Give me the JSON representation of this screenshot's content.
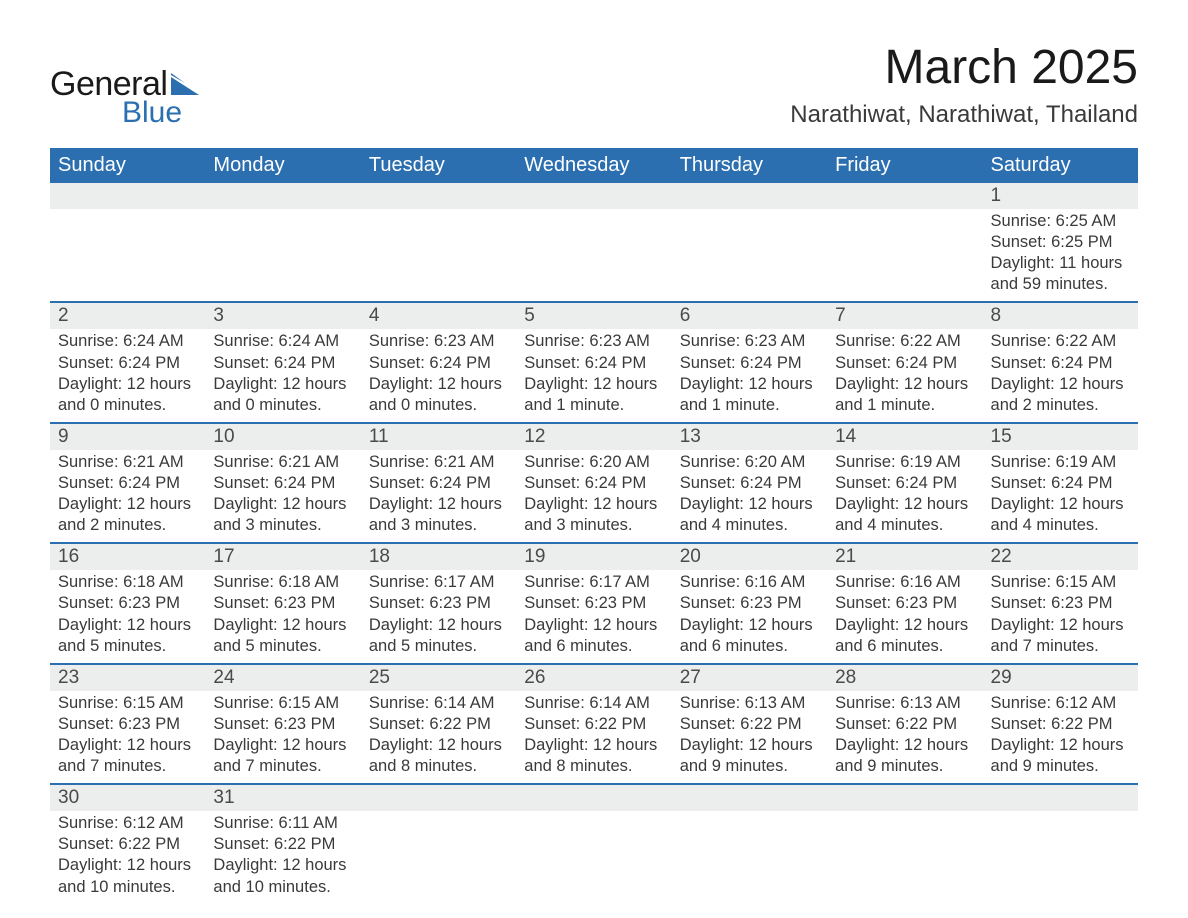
{
  "logo": {
    "text1": "General",
    "text2": "Blue",
    "flag_color": "#2b6fb0"
  },
  "title": "March 2025",
  "location": "Narathiwat, Narathiwat, Thailand",
  "colors": {
    "header_bg": "#2b6fb0",
    "header_fg": "#ffffff",
    "daynum_bg": "#eceded",
    "row_divider": "#2b6fb0",
    "text": "#3a3a3a"
  },
  "weekdays": [
    "Sunday",
    "Monday",
    "Tuesday",
    "Wednesday",
    "Thursday",
    "Friday",
    "Saturday"
  ],
  "weeks": [
    [
      null,
      null,
      null,
      null,
      null,
      null,
      {
        "n": "1",
        "sr": "6:25 AM",
        "ss": "6:25 PM",
        "dl": "11 hours and 59 minutes."
      }
    ],
    [
      {
        "n": "2",
        "sr": "6:24 AM",
        "ss": "6:24 PM",
        "dl": "12 hours and 0 minutes."
      },
      {
        "n": "3",
        "sr": "6:24 AM",
        "ss": "6:24 PM",
        "dl": "12 hours and 0 minutes."
      },
      {
        "n": "4",
        "sr": "6:23 AM",
        "ss": "6:24 PM",
        "dl": "12 hours and 0 minutes."
      },
      {
        "n": "5",
        "sr": "6:23 AM",
        "ss": "6:24 PM",
        "dl": "12 hours and 1 minute."
      },
      {
        "n": "6",
        "sr": "6:23 AM",
        "ss": "6:24 PM",
        "dl": "12 hours and 1 minute."
      },
      {
        "n": "7",
        "sr": "6:22 AM",
        "ss": "6:24 PM",
        "dl": "12 hours and 1 minute."
      },
      {
        "n": "8",
        "sr": "6:22 AM",
        "ss": "6:24 PM",
        "dl": "12 hours and 2 minutes."
      }
    ],
    [
      {
        "n": "9",
        "sr": "6:21 AM",
        "ss": "6:24 PM",
        "dl": "12 hours and 2 minutes."
      },
      {
        "n": "10",
        "sr": "6:21 AM",
        "ss": "6:24 PM",
        "dl": "12 hours and 3 minutes."
      },
      {
        "n": "11",
        "sr": "6:21 AM",
        "ss": "6:24 PM",
        "dl": "12 hours and 3 minutes."
      },
      {
        "n": "12",
        "sr": "6:20 AM",
        "ss": "6:24 PM",
        "dl": "12 hours and 3 minutes."
      },
      {
        "n": "13",
        "sr": "6:20 AM",
        "ss": "6:24 PM",
        "dl": "12 hours and 4 minutes."
      },
      {
        "n": "14",
        "sr": "6:19 AM",
        "ss": "6:24 PM",
        "dl": "12 hours and 4 minutes."
      },
      {
        "n": "15",
        "sr": "6:19 AM",
        "ss": "6:24 PM",
        "dl": "12 hours and 4 minutes."
      }
    ],
    [
      {
        "n": "16",
        "sr": "6:18 AM",
        "ss": "6:23 PM",
        "dl": "12 hours and 5 minutes."
      },
      {
        "n": "17",
        "sr": "6:18 AM",
        "ss": "6:23 PM",
        "dl": "12 hours and 5 minutes."
      },
      {
        "n": "18",
        "sr": "6:17 AM",
        "ss": "6:23 PM",
        "dl": "12 hours and 5 minutes."
      },
      {
        "n": "19",
        "sr": "6:17 AM",
        "ss": "6:23 PM",
        "dl": "12 hours and 6 minutes."
      },
      {
        "n": "20",
        "sr": "6:16 AM",
        "ss": "6:23 PM",
        "dl": "12 hours and 6 minutes."
      },
      {
        "n": "21",
        "sr": "6:16 AM",
        "ss": "6:23 PM",
        "dl": "12 hours and 6 minutes."
      },
      {
        "n": "22",
        "sr": "6:15 AM",
        "ss": "6:23 PM",
        "dl": "12 hours and 7 minutes."
      }
    ],
    [
      {
        "n": "23",
        "sr": "6:15 AM",
        "ss": "6:23 PM",
        "dl": "12 hours and 7 minutes."
      },
      {
        "n": "24",
        "sr": "6:15 AM",
        "ss": "6:23 PM",
        "dl": "12 hours and 7 minutes."
      },
      {
        "n": "25",
        "sr": "6:14 AM",
        "ss": "6:22 PM",
        "dl": "12 hours and 8 minutes."
      },
      {
        "n": "26",
        "sr": "6:14 AM",
        "ss": "6:22 PM",
        "dl": "12 hours and 8 minutes."
      },
      {
        "n": "27",
        "sr": "6:13 AM",
        "ss": "6:22 PM",
        "dl": "12 hours and 9 minutes."
      },
      {
        "n": "28",
        "sr": "6:13 AM",
        "ss": "6:22 PM",
        "dl": "12 hours and 9 minutes."
      },
      {
        "n": "29",
        "sr": "6:12 AM",
        "ss": "6:22 PM",
        "dl": "12 hours and 9 minutes."
      }
    ],
    [
      {
        "n": "30",
        "sr": "6:12 AM",
        "ss": "6:22 PM",
        "dl": "12 hours and 10 minutes."
      },
      {
        "n": "31",
        "sr": "6:11 AM",
        "ss": "6:22 PM",
        "dl": "12 hours and 10 minutes."
      },
      null,
      null,
      null,
      null,
      null
    ]
  ],
  "labels": {
    "sunrise": "Sunrise: ",
    "sunset": "Sunset: ",
    "daylight": "Daylight: "
  }
}
